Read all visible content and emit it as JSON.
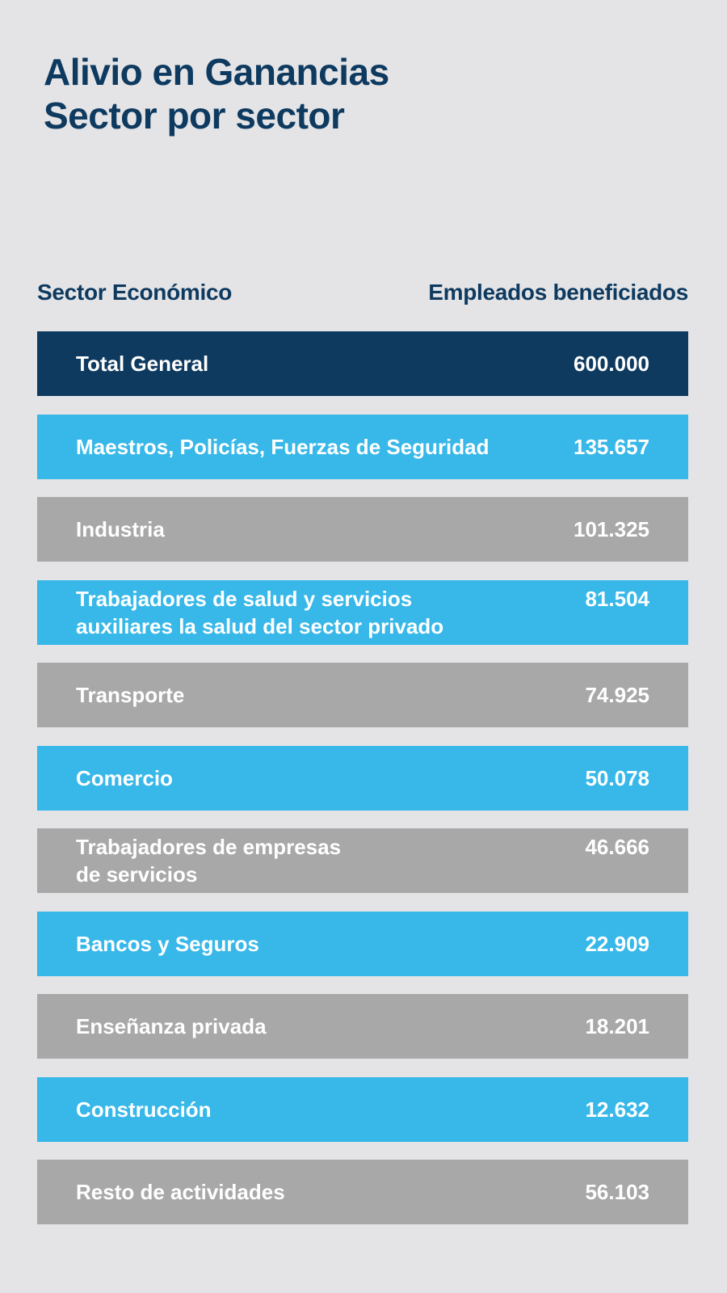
{
  "title": {
    "line1": "Alivio en Ganancias",
    "line2": "Sector por sector"
  },
  "table": {
    "headers": {
      "sector": "Sector Económico",
      "count": "Empleados beneficiados"
    },
    "rows": [
      {
        "label": "Total General",
        "value": "600.000",
        "style": "total"
      },
      {
        "label": "Maestros, Policías, Fuerzas de Seguridad",
        "value": "135.657",
        "style": "blue"
      },
      {
        "label": "Industria",
        "value": "101.325",
        "style": "gray"
      },
      {
        "label_line1": "Trabajadores de salud y servicios",
        "label_line2": "auxiliares la salud del sector privado",
        "value": "81.504",
        "style": "blue"
      },
      {
        "label": "Transporte",
        "value": "74.925",
        "style": "gray"
      },
      {
        "label": "Comercio",
        "value": "50.078",
        "style": "blue"
      },
      {
        "label_line1": "Trabajadores de empresas",
        "label_line2": "de servicios",
        "value": "46.666",
        "style": "gray"
      },
      {
        "label": "Bancos y Seguros",
        "value": "22.909",
        "style": "blue"
      },
      {
        "label": "Enseñanza privada",
        "value": "18.201",
        "style": "gray"
      },
      {
        "label": "Construcción",
        "value": "12.632",
        "style": "blue"
      },
      {
        "label": "Resto de actividades",
        "value": "56.103",
        "style": "gray"
      }
    ]
  },
  "colors": {
    "background": "#e4e4e6",
    "navy": "#0e3a60",
    "blue": "#37b8e9",
    "gray": "#a8a8a8",
    "text_on_row": "#ffffff"
  }
}
